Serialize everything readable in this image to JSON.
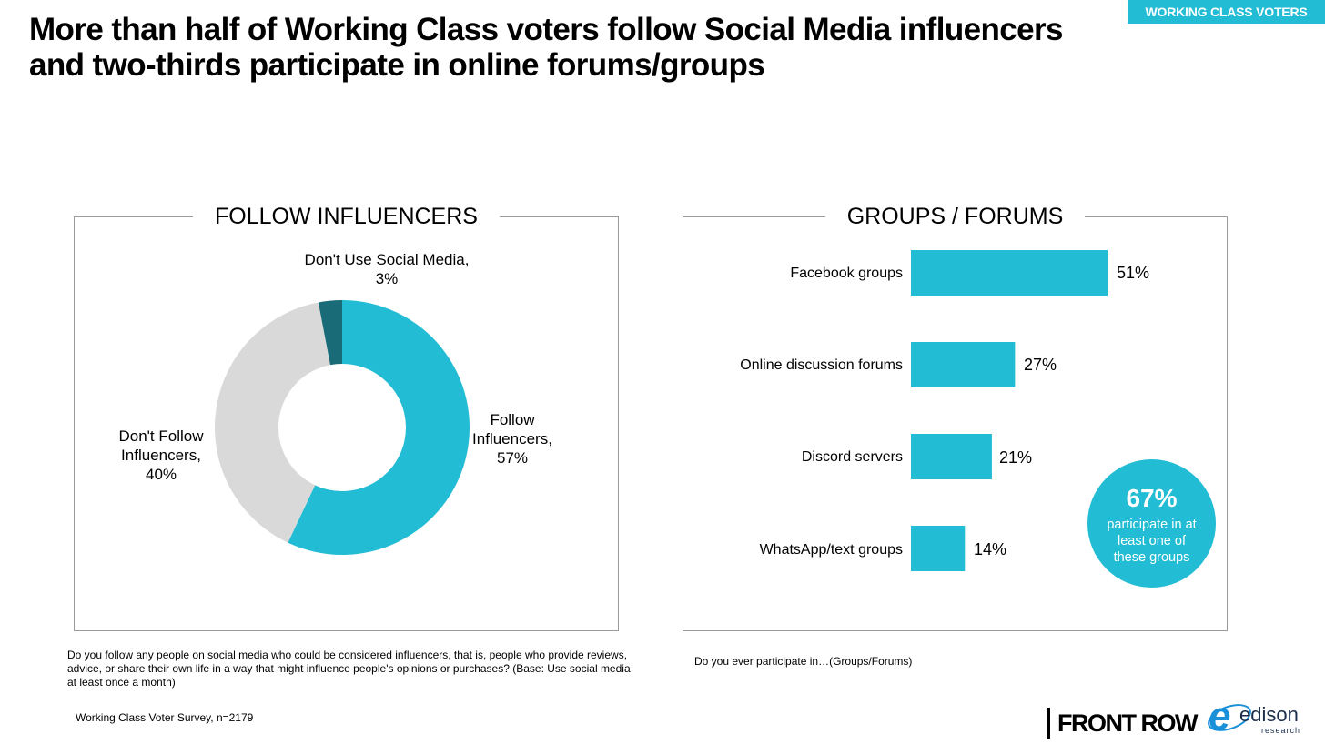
{
  "tag": "WORKING CLASS VOTERS",
  "title": "More than half of Working Class voters follow Social Media influencers and two-thirds participate in online forums/groups",
  "colors": {
    "accent": "#22bcd4",
    "dark": "#1a6b78",
    "grey": "#d9d9d9"
  },
  "chart_data": [
    {
      "type": "pie",
      "title": "FOLLOW INFLUENCERS",
      "slices": [
        {
          "label": "Don't Use Social Media",
          "value": 3,
          "value_label": "3%",
          "color": "#1a6b78"
        },
        {
          "label": "Follow Influencers",
          "value": 57,
          "value_label": "57%",
          "color": "#22bcd4"
        },
        {
          "label": "Don't Follow Influencers",
          "value": 40,
          "value_label": "40%",
          "color": "#d9d9d9"
        }
      ]
    },
    {
      "type": "bar",
      "orientation": "horizontal",
      "title": "GROUPS / FORUMS",
      "categories": [
        "Facebook groups",
        "Online discussion forums",
        "Discord servers",
        "WhatsApp/text groups"
      ],
      "values": [
        51,
        27,
        21,
        14
      ],
      "value_labels": [
        "51%",
        "27%",
        "21%",
        "14%"
      ],
      "color": "#22bcd4"
    }
  ],
  "pie_labels": {
    "dont_use_line1": "Don't Use Social Media,",
    "dont_use_line2": "3%",
    "follow_line1": "Follow",
    "follow_line2": "Influencers,",
    "follow_line3": "57%",
    "dont_follow_line1": "Don't Follow",
    "dont_follow_line2": "Influencers,",
    "dont_follow_line3": "40%"
  },
  "callout": {
    "value": "67%",
    "text": "participate in at least one of these groups"
  },
  "notes": {
    "left_question": "Do you follow any people on social media who could be considered influencers, that is, people who provide reviews, advice, or share their own life in a way that might influence people's opinions or purchases?  (Base: Use social media at least once a month)",
    "right_question": "Do you ever participate in…(Groups/Forums)",
    "source": "Working Class Voter Survey, n=2179"
  },
  "logos": {
    "front_row": "FRONT ROW",
    "edison_name": "edison",
    "edison_sub": "research"
  }
}
